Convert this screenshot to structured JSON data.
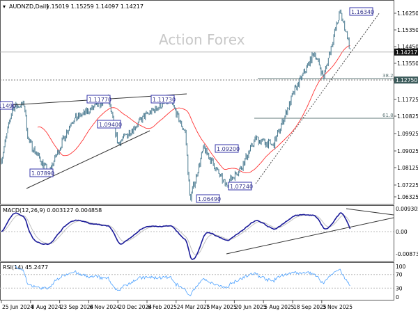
{
  "header": {
    "symbol": "AUDNZD,Daily",
    "ohlc": "1.15019 1.15259 1.14097 1.14217"
  },
  "watermark": "Action Forex",
  "chart_data": {
    "type": "bar",
    "title": "AUDNZD,Daily",
    "ylim": [
      1.06325,
      1.1634
    ],
    "price_ticks": [
      "1.16250",
      "1.15350",
      "1.14450",
      "1.13550",
      "1.11725",
      "1.10825",
      "1.09925",
      "1.09025",
      "1.08125",
      "1.07225",
      "1.06325"
    ],
    "current_price": "1.14217",
    "level_label": "1.12750",
    "fib_levels": [
      {
        "label": "38.2",
        "value": 1.1275
      },
      {
        "label": "61.8",
        "value": 1.1075
      }
    ],
    "swing_labels": [
      "1.11490",
      "1.07890",
      "1.11770",
      "1.09400",
      "1.11730",
      "1.06490",
      "1.09200",
      "1.07240",
      "1.16340"
    ],
    "x_ticks": [
      "25 Jun 2024",
      "8 Aug 2024",
      "23 Sep 2024",
      "6 Nov 2024",
      "20 Dec 2024",
      "6 Feb 2025",
      "24 Mar 2025",
      "7 May 2025",
      "20 Jun 2025",
      "5 Aug 2025",
      "18 Sep 2025",
      "3 Nov 2025"
    ],
    "price_path": [
      {
        "date": "2024-06-25",
        "price": 1.0857
      },
      {
        "date": "2024-07-12",
        "price": 1.113
      },
      {
        "date": "2024-07-30",
        "price": 1.1149
      },
      {
        "date": "2024-08-05",
        "price": 1.096
      },
      {
        "date": "2024-09-05",
        "price": 1.0789
      },
      {
        "date": "2024-10-10",
        "price": 1.106
      },
      {
        "date": "2024-12-05",
        "price": 1.1177
      },
      {
        "date": "2024-12-20",
        "price": 1.094
      },
      {
        "date": "2025-01-31",
        "price": 1.109
      },
      {
        "date": "2025-03-10",
        "price": 1.1173
      },
      {
        "date": "2025-03-24",
        "price": 1.106
      },
      {
        "date": "2025-04-02",
        "price": 1.1
      },
      {
        "date": "2025-04-09",
        "price": 1.0649
      },
      {
        "date": "2025-04-30",
        "price": 1.092
      },
      {
        "date": "2025-06-02",
        "price": 1.0724
      },
      {
        "date": "2025-06-27",
        "price": 1.082
      },
      {
        "date": "2025-07-18",
        "price": 1.097
      },
      {
        "date": "2025-08-14",
        "price": 1.093
      },
      {
        "date": "2025-09-16",
        "price": 1.122
      },
      {
        "date": "2025-10-16",
        "price": 1.142
      },
      {
        "date": "2025-10-30",
        "price": 1.129
      },
      {
        "date": "2025-11-24",
        "price": 1.1634
      },
      {
        "date": "2025-12-05",
        "price": 1.151
      },
      {
        "date": "2025-12-10",
        "price": 1.14217
      }
    ],
    "macd": {
      "label": "MACD(12,26,9) 0.003127 0.004858",
      "ticks": [
        "0.009305",
        "0.00",
        "-0.008737"
      ],
      "ylim": [
        -0.008737,
        0.009305
      ]
    },
    "rsi": {
      "label": "RSI(14) 45.2477",
      "ticks": [
        "100",
        "70",
        "30",
        "0"
      ],
      "ylim": [
        0,
        100
      ]
    },
    "colors": {
      "bars": "#4a7a90",
      "ma": "#ff3333",
      "macd": "#1a1a99",
      "signal": "#c0c0c0",
      "rsi": "#4aa0ff",
      "label_border": "#3333aa"
    }
  }
}
